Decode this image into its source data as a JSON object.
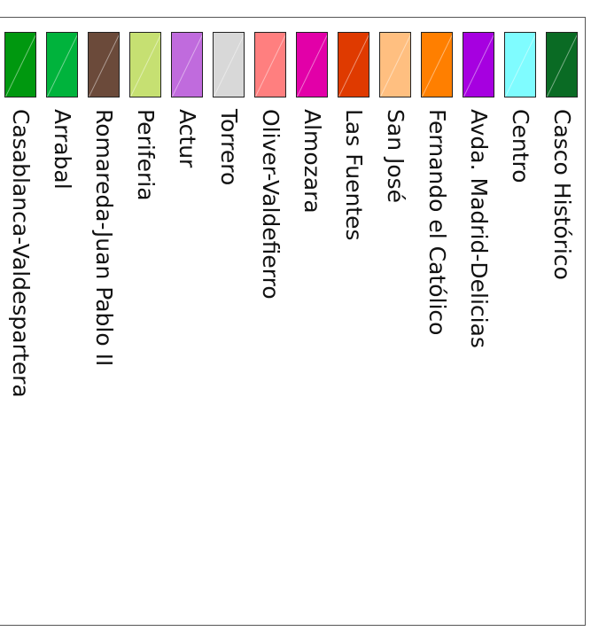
{
  "legend": {
    "items": [
      {
        "label": "Casco Histórico",
        "color": "#0a6b24"
      },
      {
        "label": "Centro",
        "color": "#7ffcff"
      },
      {
        "label": "Avda. Madrid-Delicias",
        "color": "#a600e0"
      },
      {
        "label": "Fernando el Católico",
        "color": "#ff7f00"
      },
      {
        "label": "San José",
        "color": "#ffbf80"
      },
      {
        "label": "Las Fuentes",
        "color": "#df3a00"
      },
      {
        "label": "Almozara",
        "color": "#e200a8"
      },
      {
        "label": "Oliver-Valdefierro",
        "color": "#ff7f7f"
      },
      {
        "label": "Torrero",
        "color": "#d8d8d8"
      },
      {
        "label": "Actur",
        "color": "#c06bdd"
      },
      {
        "label": "Periferia",
        "color": "#c6e072"
      },
      {
        "label": "Romareda-Juan Pablo II",
        "color": "#6b4a3a"
      },
      {
        "label": "Arrabal",
        "color": "#00b33c"
      },
      {
        "label": "Casablanca-Valdespartera",
        "color": "#00980f"
      }
    ]
  }
}
